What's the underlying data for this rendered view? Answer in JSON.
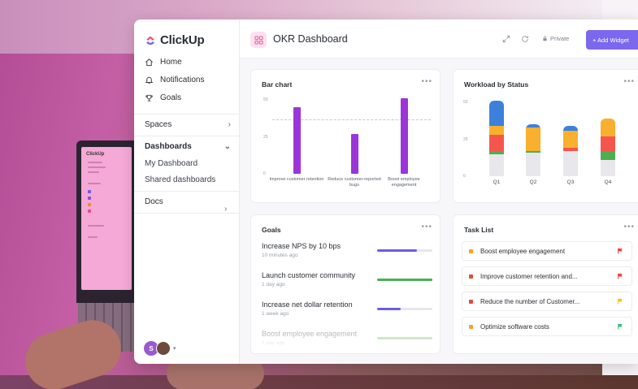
{
  "brand": {
    "name": "ClickUp"
  },
  "sidebar": {
    "nav": [
      {
        "label": "Home",
        "icon": "home-icon"
      },
      {
        "label": "Notifications",
        "icon": "bell-icon"
      },
      {
        "label": "Goals",
        "icon": "trophy-icon"
      }
    ],
    "spaces_label": "Spaces",
    "dashboards_label": "Dashboards",
    "dashboards_items": [
      "My Dashboard",
      "Shared dashboards"
    ],
    "docs_label": "Docs",
    "avatar_initial": "S"
  },
  "header": {
    "title": "OKR Dashboard",
    "private_label": "Private",
    "add_widget_label": "+ Add Widget"
  },
  "bar_chart": {
    "title": "Bar chart",
    "chart_data": {
      "type": "bar",
      "categories": [
        "Improve customer retention",
        "Reduce customer-reported bugs",
        "Boost employee engagement"
      ],
      "values": [
        45,
        27,
        51
      ],
      "yticks": [
        "0",
        "25",
        "50"
      ],
      "ylim": [
        0,
        55
      ],
      "target": 37
    }
  },
  "workload": {
    "title": "Workload by Status",
    "chart_data": {
      "type": "bar",
      "stacked": true,
      "categories": [
        "Q1",
        "Q2",
        "Q3",
        "Q4"
      ],
      "yticks": [
        "0",
        "25",
        "50"
      ],
      "ylim": [
        0,
        55
      ],
      "series_colors": [
        "#e8e8ec",
        "#4caf50",
        "#f4564d",
        "#f8b02e",
        "#3c80dc"
      ],
      "stacks": [
        [
          15,
          2,
          11,
          6,
          17
        ],
        [
          16,
          1,
          0,
          16,
          2
        ],
        [
          17,
          0,
          2,
          12,
          3
        ],
        [
          11,
          6,
          10,
          12,
          0
        ]
      ]
    }
  },
  "goals": {
    "title": "Goals",
    "items": [
      {
        "name": "Increase NPS by 10 bps",
        "time": "10 minutes ago",
        "progress": 0.72,
        "color": "#6b5ce7"
      },
      {
        "name": "Launch customer community",
        "time": "1 day ago",
        "progress": 1.0,
        "color": "#4caf50"
      },
      {
        "name": "Increase net dollar retention",
        "time": "1 week ago",
        "progress": 0.42,
        "color": "#6b5ce7"
      },
      {
        "name": "Boost employee engagement",
        "time": "1 day ago",
        "progress": 1.0,
        "color": "#4caf50"
      }
    ]
  },
  "tasks": {
    "title": "Task List",
    "items": [
      {
        "name": "Boost employee engagement",
        "dot": "#f8a424",
        "flag": "#f43f3f"
      },
      {
        "name": "Improve customer retention and...",
        "dot": "#e24b3b",
        "flag": "#f43f3f"
      },
      {
        "name": "Reduce the number of Customer...",
        "dot": "#e24b3b",
        "flag": "#f8c21e"
      },
      {
        "name": "Optimize software costs",
        "dot": "#f8a424",
        "flag": "#3fbf82"
      }
    ]
  },
  "laptop_screen": {
    "logo": "ClickUp"
  }
}
